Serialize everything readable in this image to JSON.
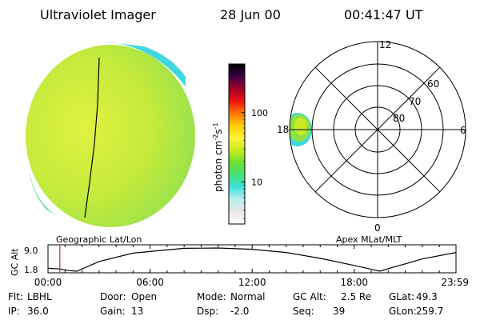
{
  "header": {
    "instrument": "Ultraviolet Imager",
    "date": "28 Jun 00",
    "time": "00:41:47 UT"
  },
  "colorbar": {
    "unit_label": "photon cm",
    "unit_sup1": "-2",
    "unit_s": "s",
    "unit_sup2": "-1",
    "ticks": [
      {
        "value": 100,
        "label": "100"
      },
      {
        "value": 10,
        "label": "10"
      }
    ],
    "range": [
      2.5,
      500
    ],
    "colors": [
      "#ffffff",
      "#e6e6e6",
      "#b8f0f0",
      "#3fe0d8",
      "#44e077",
      "#6de030",
      "#c8ec20",
      "#fff23a",
      "#ffcc00",
      "#ff7700",
      "#ee1111",
      "#a0002a",
      "#3a0044",
      "#000000"
    ]
  },
  "geo_panel": {
    "caption": "Geographic Lat/Lon",
    "disk_color": "#c6ea38"
  },
  "polar_panel": {
    "caption": "Apex MLat/MLT",
    "lat_labels": [
      "60",
      "70",
      "80"
    ],
    "mlt_labels": {
      "top": "12",
      "right": "6",
      "bottom": "0",
      "left": "18"
    }
  },
  "altitude_plot": {
    "ylabel": "GC Alt",
    "y_ticks": [
      "9.0",
      "1.8"
    ],
    "x_ticks": [
      "00:00",
      "06:00",
      "12:00",
      "18:00",
      "23:59"
    ],
    "ylim": [
      1.8,
      9.0
    ],
    "current_time_hours": 0.696,
    "curve": [
      {
        "t": 0.0,
        "alt": 2.7
      },
      {
        "t": 0.7,
        "alt": 2.5
      },
      {
        "t": 1.2,
        "alt": 2.0
      },
      {
        "t": 1.7,
        "alt": 1.8
      },
      {
        "t": 3.0,
        "alt": 4.8
      },
      {
        "t": 5.0,
        "alt": 7.4
      },
      {
        "t": 8.0,
        "alt": 8.9
      },
      {
        "t": 10.0,
        "alt": 9.0
      },
      {
        "t": 12.0,
        "alt": 8.6
      },
      {
        "t": 14.0,
        "alt": 7.6
      },
      {
        "t": 16.0,
        "alt": 5.8
      },
      {
        "t": 18.0,
        "alt": 3.6
      },
      {
        "t": 19.0,
        "alt": 2.4
      },
      {
        "t": 19.5,
        "alt": 1.8
      },
      {
        "t": 20.2,
        "alt": 2.9
      },
      {
        "t": 22.0,
        "alt": 5.6
      },
      {
        "t": 23.98,
        "alt": 7.6
      }
    ]
  },
  "status": {
    "row1": [
      {
        "label": "Flt:",
        "value": "LBHL"
      },
      {
        "label": "Door:",
        "value": "Open"
      },
      {
        "label": "Mode:",
        "value": "Normal"
      },
      {
        "label": "GC Alt:",
        "value": "2.5 Re"
      },
      {
        "label": "GLat:",
        "value": "49.3"
      }
    ],
    "row2": [
      {
        "label": "IP:",
        "value": "36.0"
      },
      {
        "label": "Gain:",
        "value": "13"
      },
      {
        "label": "Dsp:",
        "value": "-2.0"
      },
      {
        "label": "Seq:",
        "value": "39"
      },
      {
        "label": "GLon:",
        "value": "259.7"
      }
    ]
  }
}
